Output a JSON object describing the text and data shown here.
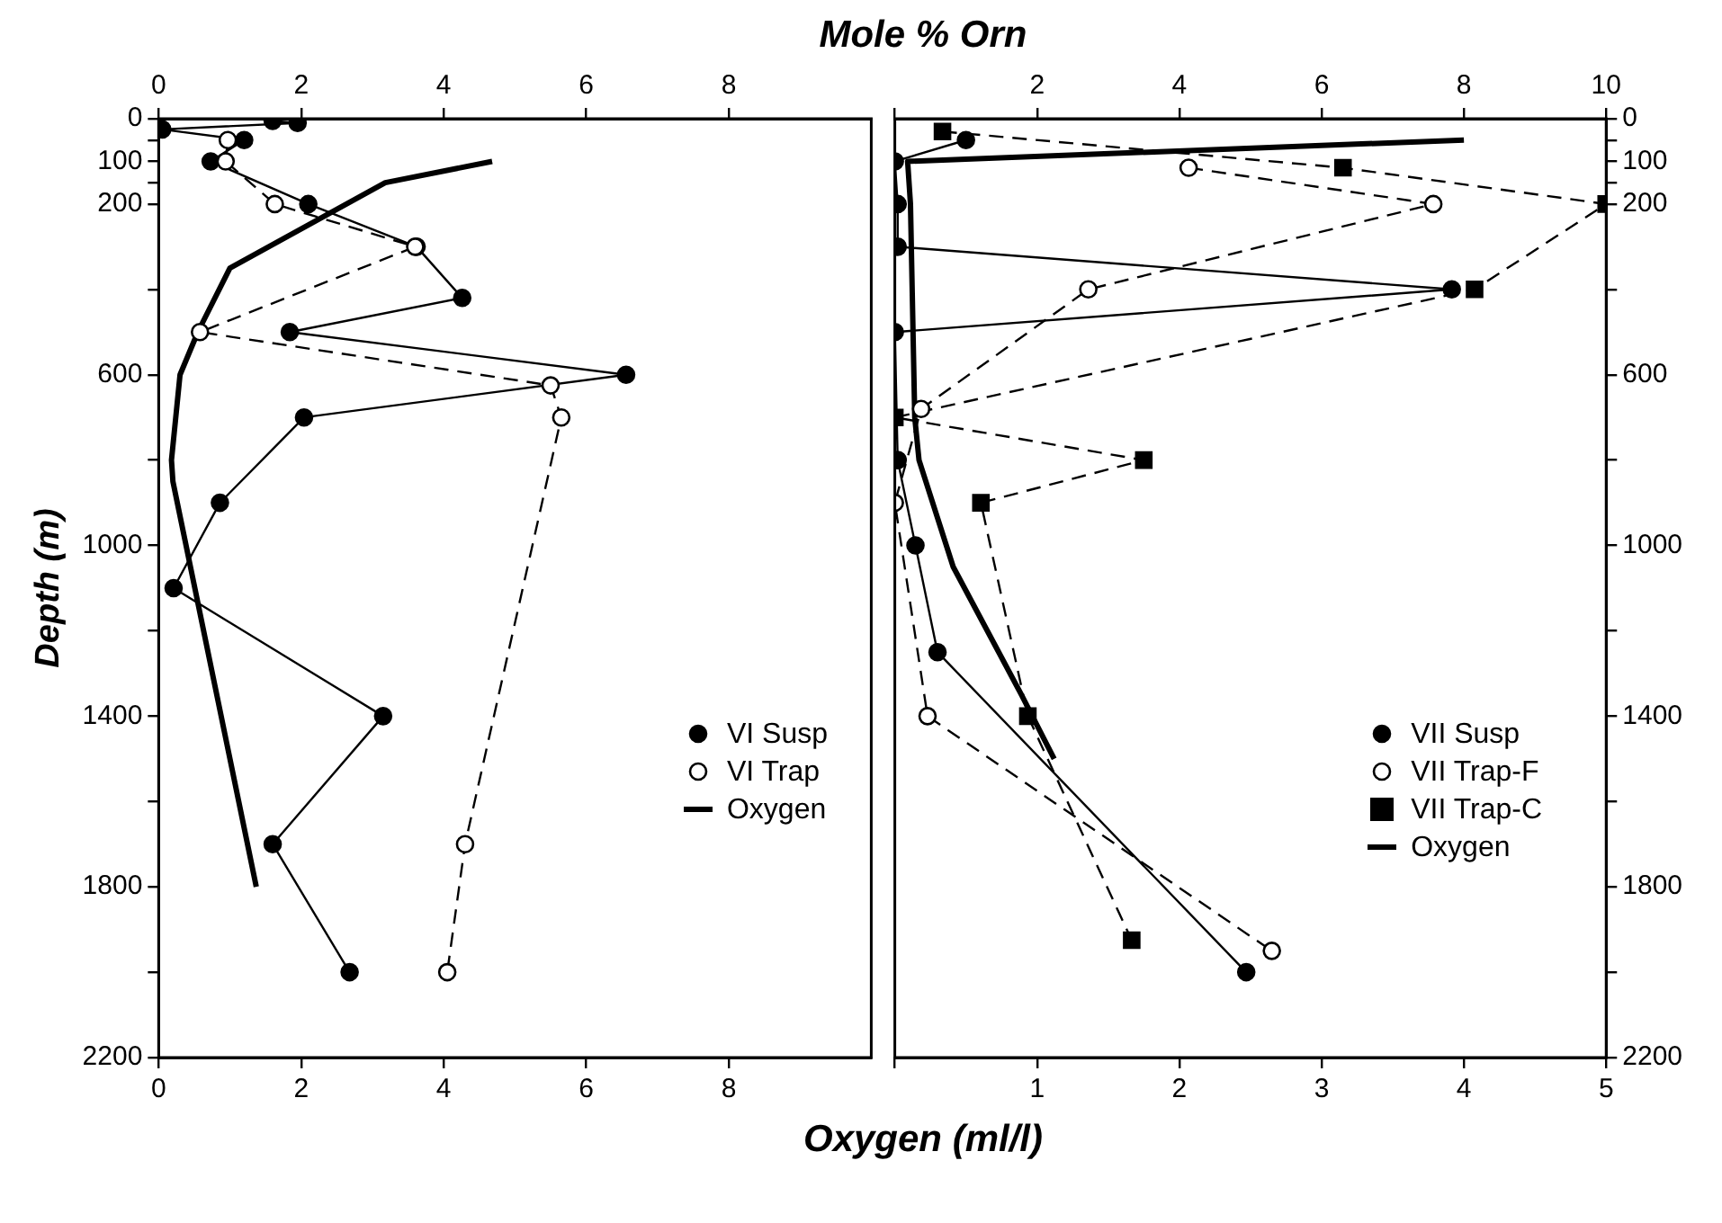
{
  "chart_data": [
    {
      "type": "line",
      "x2label": "Mole % Orn",
      "xlabel": "Oxygen (ml/l)",
      "ylabel": "Depth (m)",
      "xlim": [
        0,
        10
      ],
      "xticks": [
        0,
        2,
        4,
        6,
        8
      ],
      "x2lim": [
        0,
        10
      ],
      "x2ticks": [
        0,
        2,
        4,
        6,
        8
      ],
      "ylim": [
        2200,
        0
      ],
      "yticks": [
        0,
        {
          "value": 50,
          "label": null
        },
        100,
        {
          "value": 150,
          "label": null
        },
        200,
        {
          "value": 400,
          "label": null
        },
        600,
        {
          "value": 800,
          "label": null
        },
        1000,
        {
          "value": 1200,
          "label": null
        },
        1400,
        {
          "value": 1600,
          "label": null
        },
        1800,
        {
          "value": 2000,
          "label": null
        },
        2200
      ],
      "grid": false,
      "legend": "right",
      "series": [
        {
          "name": "VI Susp",
          "color": "#000000",
          "axis": "x2",
          "marker": "circle",
          "line_style": "solid",
          "x": [
            1.6,
            1.95,
            0.05,
            1.2,
            0.73,
            2.1,
            3.62,
            4.26,
            1.84,
            6.56,
            2.04,
            0.86,
            0.21,
            3.15,
            1.6,
            2.68
          ],
          "values": [
            5,
            10,
            25,
            50,
            100,
            200,
            300,
            420,
            500,
            600,
            700,
            900,
            1100,
            1400,
            1700,
            2000
          ]
        },
        {
          "name": "VI Trap",
          "color": "#000000",
          "axis": "x2",
          "marker": "circle",
          "line_style": "dashed",
          "x": [
            0.97,
            0.94,
            1.63,
            3.6,
            0.58,
            5.5,
            5.65,
            4.3,
            4.05
          ],
          "values": [
            50,
            100,
            200,
            300,
            500,
            625,
            700,
            1700,
            2000
          ]
        },
        {
          "name": "Oxygen",
          "color": "#000000",
          "marker": "none",
          "line_style": "solid",
          "x": [
            4.68,
            3.18,
            1.0,
            0.55,
            0.3,
            0.18,
            0.2,
            1.37
          ],
          "values": [
            100,
            150,
            350,
            500,
            600,
            800,
            850,
            1800
          ]
        }
      ]
    },
    {
      "type": "line",
      "xlim": [
        0,
        5
      ],
      "xticks": [
        {
          "value": 0,
          "label": null
        },
        1,
        2,
        3,
        4,
        5
      ],
      "x2lim": [
        0,
        10
      ],
      "x2ticks": [
        {
          "value": 0,
          "label": null
        },
        2,
        4,
        6,
        8,
        10
      ],
      "ylim": [
        2200,
        0
      ],
      "yticks": [
        0,
        {
          "value": 50,
          "label": null
        },
        100,
        {
          "value": 150,
          "label": null
        },
        200,
        {
          "value": 400,
          "label": null
        },
        600,
        {
          "value": 800,
          "label": null
        },
        1000,
        {
          "value": 1200,
          "label": null
        },
        1400,
        {
          "value": 1600,
          "label": null
        },
        1800,
        {
          "value": 2000,
          "label": null
        },
        2200
      ],
      "grid": false,
      "legend": "right",
      "series": [
        {
          "name": "VII Susp",
          "color": "#000000",
          "axis": "x2",
          "marker": "circle",
          "line_style": "solid",
          "x": [
            1.0,
            0,
            0.04,
            0.04,
            7.83,
            0,
            0.04,
            0.29,
            0.6,
            4.94
          ],
          "values": [
            50,
            100,
            200,
            300,
            400,
            500,
            800,
            1000,
            1250,
            2000
          ]
        },
        {
          "name": "VII Trap-F",
          "color": "#000000",
          "axis": "x2",
          "marker": "circle",
          "line_style": "dashed",
          "x": [
            4.13,
            7.57,
            2.72,
            0.37,
            0,
            0.46,
            5.3
          ],
          "values": [
            115,
            200,
            400,
            680,
            900,
            1400,
            1950
          ]
        },
        {
          "name": "VII Trap-C",
          "color": "#000000",
          "axis": "x2",
          "marker": "square",
          "line_style": "dashed",
          "x": [
            0.67,
            6.3,
            10,
            8.15,
            0,
            3.5,
            1.21,
            1.87,
            3.33
          ],
          "values": [
            30,
            115,
            200,
            400,
            700,
            800,
            900,
            1400,
            1925
          ]
        },
        {
          "name": "Oxygen",
          "color": "#000000",
          "marker": "none",
          "line_style": "solid",
          "x": [
            4.0,
            0.09,
            0.11,
            0.14,
            0.17,
            0.41,
            0.89,
            1.12
          ],
          "values": [
            50,
            100,
            200,
            700,
            800,
            1050,
            1350,
            1500
          ]
        }
      ]
    }
  ]
}
